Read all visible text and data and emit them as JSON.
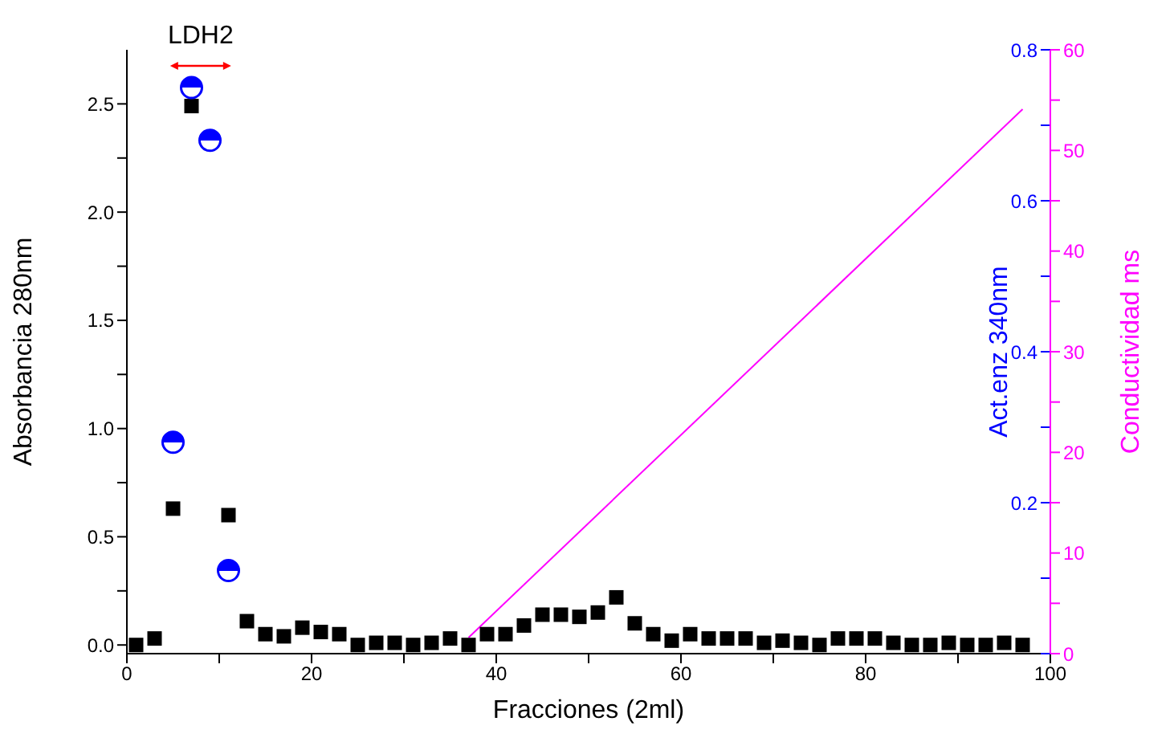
{
  "chart_data": {
    "type": "scatter",
    "xlabel": "Fracciones (2ml)",
    "ylabel": "Absorbancia 280nm",
    "y2label": "Act.enz 340nm",
    "y3label": "Conductividad ms",
    "xlim": [
      0,
      100
    ],
    "xticks": [
      0,
      {
        "value": 10,
        "label": null
      },
      20,
      {
        "value": 30,
        "label": null
      },
      40,
      {
        "value": 50,
        "label": null
      },
      60,
      {
        "value": 70,
        "label": null
      },
      80,
      {
        "value": 90,
        "label": null
      },
      100
    ],
    "ylim": [
      -0.04,
      2.75
    ],
    "yticks": [
      "0.0",
      {
        "value": 0.25,
        "label": null
      },
      0.5,
      {
        "value": 0.75,
        "label": null
      },
      "1.0",
      {
        "value": 1.25,
        "label": null
      },
      1.5,
      {
        "value": 1.75,
        "label": null
      },
      "2.0",
      {
        "value": 2.25,
        "label": null
      },
      2.5
    ],
    "y2lim": [
      0,
      0.8
    ],
    "y2ticks": [
      {
        "value": 0,
        "label": null
      },
      {
        "value": 0.1,
        "label": null
      },
      0.2,
      {
        "value": 0.3,
        "label": null
      },
      0.4,
      {
        "value": 0.5,
        "label": null
      },
      0.6,
      {
        "value": 0.7,
        "label": null
      },
      0.8
    ],
    "y3lim": [
      0,
      60
    ],
    "y3ticks": [
      0,
      {
        "value": 5,
        "label": null
      },
      10,
      {
        "value": 15,
        "label": null
      },
      20,
      {
        "value": 25,
        "label": null
      },
      30,
      {
        "value": 35,
        "label": null
      },
      40,
      {
        "value": 45,
        "label": null
      },
      50,
      {
        "value": 55,
        "label": null
      },
      60
    ],
    "grid": false,
    "legend": false,
    "annotations": [
      "LDH2"
    ],
    "series": [
      {
        "color": "#000000",
        "marker": "square",
        "x": [
          1,
          3,
          5,
          7,
          11,
          13,
          15,
          17,
          19,
          21,
          23,
          25,
          27,
          29,
          31,
          33,
          35,
          37,
          39,
          41,
          43,
          45,
          47,
          49,
          51,
          53,
          55,
          57,
          59,
          61,
          63,
          65,
          67,
          69,
          71,
          73,
          75,
          77,
          79,
          81,
          83,
          85,
          87,
          89,
          91,
          93,
          95,
          97
        ],
        "values": [
          0.0,
          0.03,
          0.63,
          2.49,
          0.6,
          0.11,
          0.05,
          0.04,
          0.08,
          0.06,
          0.05,
          0.0,
          0.01,
          0.01,
          0.0,
          0.01,
          0.03,
          0.0,
          0.05,
          0.05,
          0.09,
          0.14,
          0.14,
          0.13,
          0.15,
          0.22,
          0.1,
          0.05,
          0.02,
          0.05,
          0.03,
          0.03,
          0.03,
          0.01,
          0.02,
          0.01,
          0.0,
          0.03,
          0.03,
          0.03,
          0.01,
          0.0,
          0.0,
          0.01,
          0.0,
          0.0,
          0.01,
          0.0
        ]
      },
      {
        "type": "scatter",
        "color": "#0000ff",
        "marker": "circle",
        "axis": "y2",
        "x": [
          5,
          7,
          9,
          11
        ],
        "values": [
          0.28,
          0.75,
          0.68,
          0.11
        ]
      },
      {
        "type": "line",
        "color": "#ff00ff",
        "marker": "none",
        "axis": "y3",
        "x": [
          37,
          97
        ],
        "values": [
          1.6,
          54.1
        ]
      }
    ]
  }
}
